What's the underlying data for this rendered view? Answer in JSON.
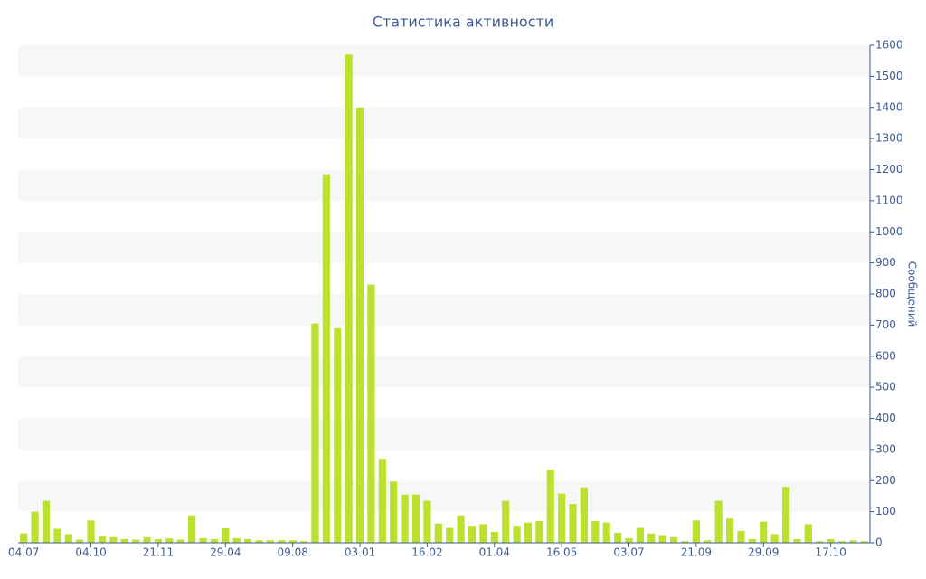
{
  "chart_data": {
    "type": "bar",
    "title": "Статистика активности",
    "y_label": "Сообщений",
    "categories": [
      "04.07",
      null,
      null,
      null,
      null,
      null,
      "04.10",
      null,
      null,
      null,
      null,
      null,
      "21.11",
      null,
      null,
      null,
      null,
      null,
      "29.04",
      null,
      null,
      null,
      null,
      null,
      "09.08",
      null,
      null,
      null,
      null,
      null,
      "03.01",
      null,
      null,
      null,
      null,
      null,
      "16.02",
      null,
      null,
      null,
      null,
      null,
      "01.04",
      null,
      null,
      null,
      null,
      null,
      "16.05",
      null,
      null,
      null,
      null,
      null,
      "03.07",
      null,
      null,
      null,
      null,
      null,
      "21.09",
      null,
      null,
      null,
      null,
      null,
      "29.09",
      null,
      null,
      null,
      null,
      null,
      "17.10",
      null,
      null,
      null
    ],
    "values": [
      30,
      100,
      135,
      45,
      28,
      10,
      72,
      20,
      18,
      12,
      10,
      18,
      12,
      14,
      10,
      88,
      15,
      12,
      47,
      15,
      12,
      8,
      8,
      8,
      8,
      5,
      705,
      1185,
      690,
      1570,
      1400,
      830,
      270,
      197,
      155,
      155,
      135,
      62,
      48,
      88,
      55,
      60,
      35,
      135,
      55,
      65,
      70,
      235,
      158,
      125,
      178,
      70,
      65,
      32,
      15,
      48,
      30,
      25,
      18,
      5,
      72,
      8,
      135,
      78,
      38,
      12,
      68,
      28,
      180,
      12,
      60,
      5,
      12,
      5,
      8,
      5
    ],
    "color": "#bce02e",
    "ylim": [
      0,
      1600
    ],
    "yticks": [
      0,
      100,
      200,
      300,
      400,
      500,
      600,
      700,
      800,
      900,
      1000,
      1100,
      1200,
      1300,
      1400,
      1500,
      1600
    ],
    "axis_side": "right",
    "banded_grid": true
  }
}
